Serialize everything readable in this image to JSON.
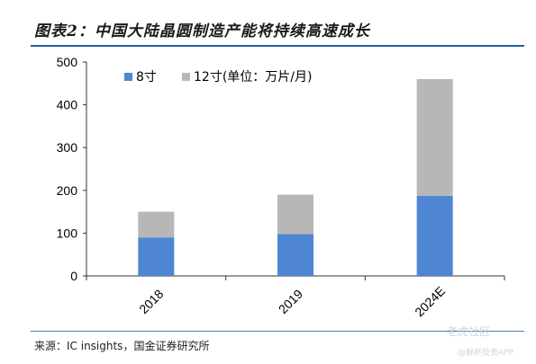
{
  "header": {
    "title": "图表2：中国大陆晶圆制造产能将持续高速成长"
  },
  "footer": {
    "source": "来源：IC insights，国金证券研究所"
  },
  "watermark": {
    "text": "老虎社区",
    "sub": "@解析投资APP"
  },
  "chart_data": {
    "type": "bar",
    "stacked": true,
    "categories": [
      "2018",
      "2019",
      "2024E"
    ],
    "series": [
      {
        "name": "8寸",
        "values": [
          90,
          98,
          187
        ],
        "color": "#4f86d4"
      },
      {
        "name": "12寸(单位：万片/月)",
        "values": [
          60,
          92,
          273
        ],
        "color": "#b7b7b7"
      }
    ],
    "ylim": [
      0,
      500
    ],
    "yticks": [
      0,
      100,
      200,
      300,
      400,
      500
    ],
    "grid": false,
    "legend_position": "top-left"
  }
}
